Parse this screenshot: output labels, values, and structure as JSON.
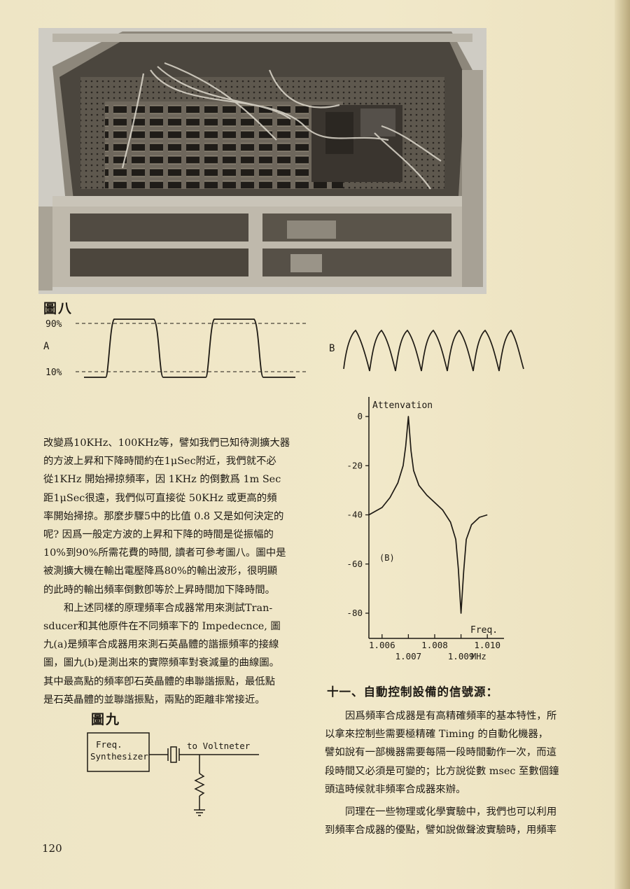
{
  "photo": {
    "caption": ""
  },
  "figure8": {
    "label": "圖八",
    "plot_a": {
      "name": "A",
      "label_90": "90%",
      "label_10": "10%"
    },
    "plot_b": {
      "name": "B"
    }
  },
  "chart_data": [
    {
      "type": "line",
      "title": "",
      "ylabel": "Attenvation",
      "xlabel": "Freq.",
      "x_unit": "MHz",
      "x_ticks_upper": [
        "1.006",
        "1.008",
        "1.010"
      ],
      "x_ticks_lower": [
        "1.007",
        "1.009"
      ],
      "y_ticks": [
        "0",
        "-20",
        "-40",
        "-60",
        "-80"
      ],
      "ylim": [
        -85,
        0
      ],
      "xlim": [
        1.0055,
        1.0105
      ],
      "annotation": "(B)",
      "series": [
        {
          "x": [
            1.0055,
            1.006,
            1.0063,
            1.0066,
            1.0068,
            1.0069,
            1.007,
            1.0071,
            1.0072,
            1.0074,
            1.0077,
            1.008,
            1.0083,
            1.0086,
            1.0088,
            1.0089,
            1.009,
            1.0091,
            1.0092,
            1.0094,
            1.0097,
            1.01
          ],
          "y": [
            -40,
            -37,
            -33,
            -27,
            -20,
            -12,
            0,
            -14,
            -22,
            -28,
            -32,
            -35,
            -38,
            -43,
            -50,
            -62,
            -80,
            -63,
            -50,
            -44,
            -41,
            -40
          ]
        }
      ]
    }
  ],
  "left_text": {
    "lines": [
      "改變爲10KHz、100KHz等，譬如我們已知待測擴大器",
      "的方波上昇和下降時間約在1μSec附近，我們就不必",
      "從1KHz 開始掃掠頻率，因 1KHz 的倒數爲 1m Sec",
      "距1μSec很遠，我們似可直接從 50KHz 或更高的頻",
      "率開始掃掠。那麼步驟5中的比值 0.8 又是如何決定的",
      "呢? 因爲一般定方波的上昇和下降的時間是從振幅的",
      "10%到90%所需花費的時間, 讀者可參考圖八。圖中是",
      "被測擴大機在輸出電壓降爲80%的輸出波形，很明顯",
      "的此時的輸出頻率倒數卽等於上昇時間加下降時間。",
      "和上述同樣的原理頻率合成器常用來測試Tran-",
      "sducer和其他原件在不同頻率下的 Impedecnce, 圖",
      "九(a)是頻率合成器用來測石英晶體的諧振頻率的接線",
      "圖，圖九(b)是測出來的實際頻率對衰減量的曲線圖。",
      "其中最高點的頻率卽石英晶體的串聯諧振點，最低點",
      "是石英晶體的並聯諧振點，兩點的距離非常接近。"
    ]
  },
  "figure9": {
    "label": "圖九",
    "box_line1": "Freq.",
    "box_line2": "Synthesizer",
    "meter_label": "to Voltneter"
  },
  "section": {
    "heading": "十一、自動控制設備的信號源：",
    "lines": [
      "因爲頻率合成器是有高精確頻率的基本特性，所",
      "以拿來控制些需要極精確 Timing 的自動化機器，",
      "譬如說有一部機器需要每隔一段時間動作一次，而這",
      "段時間又必須是可變的；比方說從數 msec 至數個鐘",
      "頭這時候就非頻率合成器來辦。",
      "同理在一些物理或化學實驗中，我們也可以利用",
      "到頻率合成器的優點，譬如說做聲波實驗時，用頻率"
    ]
  },
  "page_number": "120"
}
